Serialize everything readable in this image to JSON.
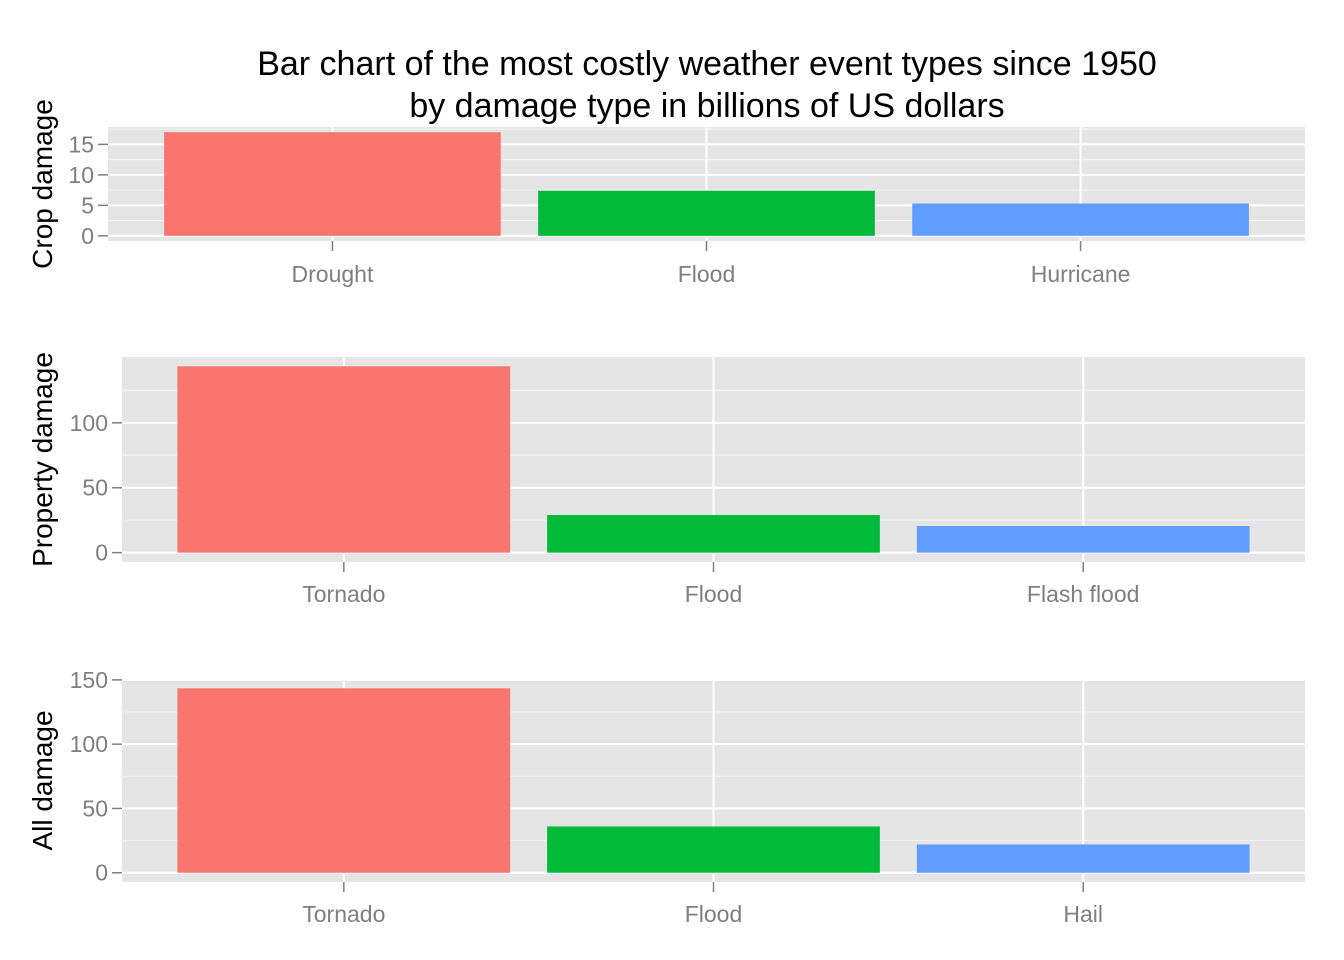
{
  "title_line1": "Bar chart of the most costly weather event types since 1950",
  "title_line2": "by damage type in billions of US dollars",
  "colors": {
    "panel_bg": "#e5e5e5",
    "grid_major": "#ffffff",
    "grid_minor": "#f2f2f2",
    "tick_text": "#7f7f7f",
    "bar_1": "#f8766d",
    "bar_2": "#00ba38",
    "bar_3": "#619cff"
  },
  "chart_data": [
    {
      "type": "bar",
      "ylabel": "Crop damage",
      "categories": [
        "Drought",
        "Flood",
        "Hurricane"
      ],
      "values": [
        17.0,
        7.4,
        5.3
      ],
      "ylim": [
        -0.85,
        17.85
      ],
      "yticks": [
        0,
        5,
        10,
        15
      ],
      "grid": true
    },
    {
      "type": "bar",
      "ylabel": "Property damage",
      "categories": [
        "Tornado",
        "Flood",
        "Flash flood"
      ],
      "values": [
        143.5,
        29.0,
        20.5
      ],
      "ylim": [
        -7.2,
        150.7
      ],
      "yticks": [
        0,
        50,
        100
      ],
      "grid": true
    },
    {
      "type": "bar",
      "ylabel": "All damage",
      "categories": [
        "Tornado",
        "Flood",
        "Hail"
      ],
      "values": [
        143.5,
        36.0,
        22.0
      ],
      "ylim": [
        -7.2,
        150.7
      ],
      "yticks": [
        0,
        50,
        100,
        150
      ],
      "grid": true
    }
  ]
}
